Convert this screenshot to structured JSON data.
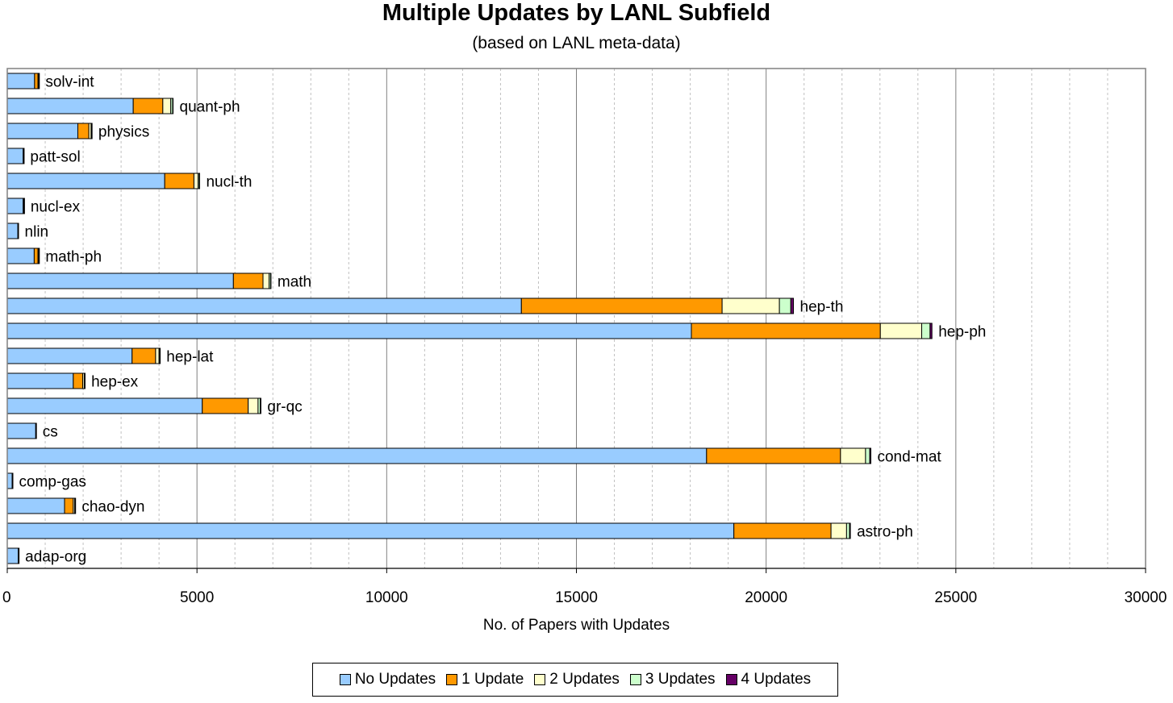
{
  "title": "Multiple Updates by LANL Subfield",
  "subtitle": "(based on LANL meta-data)",
  "chart_data": {
    "type": "bar",
    "orientation": "horizontal",
    "stacked": true,
    "title": "Multiple Updates by LANL Subfield",
    "subtitle": "(based on LANL meta-data)",
    "xlabel": "No. of Papers with Updates",
    "ylabel": "",
    "xlim": [
      0,
      30000
    ],
    "x_ticks": [
      "0",
      "5000",
      "10000",
      "15000",
      "20000",
      "25000",
      "30000"
    ],
    "grid": "vertical, major solid and minor dashed",
    "legend_position": "bottom",
    "categories": [
      "solv-int",
      "quant-ph",
      "physics",
      "patt-sol",
      "nucl-th",
      "nucl-ex",
      "nlin",
      "math-ph",
      "math",
      "hep-th",
      "hep-ph",
      "hep-lat",
      "hep-ex",
      "gr-qc",
      "cs",
      "cond-mat",
      "comp-gas",
      "chao-dyn",
      "astro-ph",
      "adap-org"
    ],
    "series": [
      {
        "name": "No Updates",
        "color": "#99ccff",
        "values": [
          720,
          3320,
          1860,
          420,
          4150,
          420,
          280,
          710,
          5960,
          13550,
          18030,
          3290,
          1740,
          5140,
          750,
          18430,
          130,
          1510,
          19150,
          290
        ]
      },
      {
        "name": "1 Update",
        "color": "#ff9900",
        "values": [
          90,
          780,
          290,
          10,
          770,
          15,
          5,
          100,
          780,
          5290,
          4980,
          620,
          250,
          1210,
          5,
          3530,
          5,
          230,
          2560,
          8
        ]
      },
      {
        "name": "2 Updates",
        "color": "#ffffcc",
        "values": [
          20,
          210,
          60,
          3,
          110,
          5,
          2,
          20,
          160,
          1510,
          1090,
          90,
          40,
          260,
          3,
          660,
          2,
          40,
          410,
          2
        ]
      },
      {
        "name": "3 Updates",
        "color": "#ccffcc",
        "values": [
          5,
          50,
          15,
          1,
          30,
          2,
          1,
          5,
          40,
          300,
          220,
          20,
          10,
          60,
          1,
          110,
          1,
          10,
          80,
          1
        ]
      },
      {
        "name": "4 Updates",
        "color": "#660066",
        "values": [
          2,
          10,
          5,
          0,
          10,
          1,
          0,
          2,
          10,
          70,
          50,
          5,
          3,
          15,
          0,
          30,
          0,
          3,
          20,
          0
        ]
      }
    ]
  }
}
